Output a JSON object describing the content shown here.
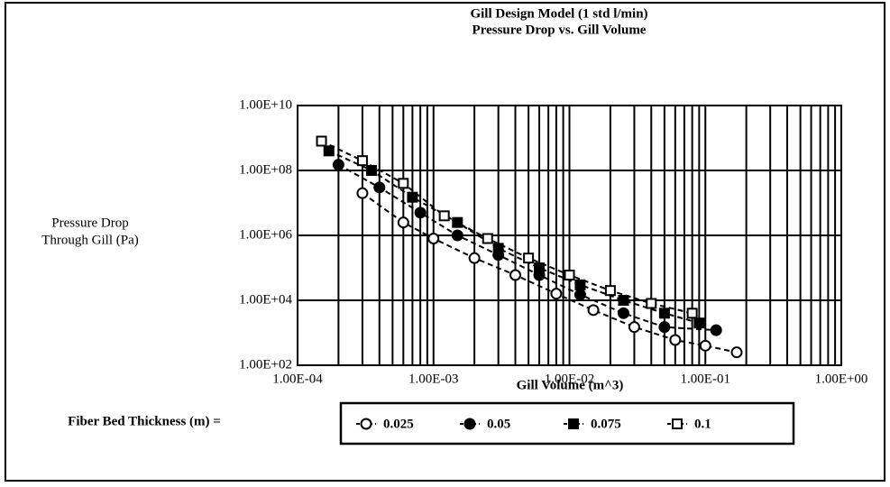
{
  "chart_data": {
    "type": "scatter",
    "title": "Gill Design Model (1 std l/min)",
    "subtitle": "Pressure Drop vs. Gill Volume",
    "y_label": [
      "Pressure Drop",
      "Through Gill (Pa)"
    ],
    "x_label": "Gill Volume (m^3)",
    "legend_title": "Fiber Bed Thickness (m) =",
    "xlog": true,
    "ylog": true,
    "grid": true,
    "xlim": [
      0.0001,
      1
    ],
    "ylim": [
      100,
      10000000000.0
    ],
    "xticks": [
      {
        "value": 0.0001,
        "label": "1.00E-04"
      },
      {
        "value": 0.001,
        "label": "1.00E-03"
      },
      {
        "value": 0.01,
        "label": "1.00E-02"
      },
      {
        "value": 0.1,
        "label": "1.00E-01"
      },
      {
        "value": 1,
        "label": "1.00E+00"
      }
    ],
    "yticks": [
      {
        "value": 100,
        "label": "1.00E+02"
      },
      {
        "value": 10000,
        "label": "1.00E+04"
      },
      {
        "value": 1000000,
        "label": "1.00E+06"
      },
      {
        "value": 100000000,
        "label": "1.00E+08"
      },
      {
        "value": 10000000000,
        "label": "1.00E+10"
      }
    ],
    "series": [
      {
        "name": "0.025",
        "color": "#000000",
        "marker": "circle-open",
        "x": [
          0.0003,
          0.0006,
          0.001,
          0.002,
          0.004,
          0.008,
          0.015,
          0.03,
          0.06,
          0.1,
          0.17
        ],
        "values": [
          20000000.0,
          2500000.0,
          800000.0,
          200000.0,
          60000.0,
          16000.0,
          5000,
          1500,
          600,
          400,
          250
        ]
      },
      {
        "name": "0.05",
        "color": "#000000",
        "marker": "circle",
        "x": [
          0.0002,
          0.0004,
          0.0008,
          0.0015,
          0.003,
          0.006,
          0.012,
          0.025,
          0.05,
          0.12
        ],
        "values": [
          150000000.0,
          30000000.0,
          5000000.0,
          1000000.0,
          250000.0,
          60000.0,
          15000.0,
          4000,
          1500,
          1200
        ]
      },
      {
        "name": "0.075",
        "color": "#000000",
        "marker": "square",
        "x": [
          0.00017,
          0.00035,
          0.0007,
          0.0015,
          0.003,
          0.006,
          0.012,
          0.025,
          0.05,
          0.09
        ],
        "values": [
          400000000.0,
          100000000.0,
          15000000.0,
          2500000.0,
          400000.0,
          100000.0,
          30000.0,
          10000.0,
          4000,
          2000
        ]
      },
      {
        "name": "0.1",
        "color": "#000000",
        "marker": "square-open",
        "x": [
          0.00015,
          0.0003,
          0.0006,
          0.0012,
          0.0025,
          0.005,
          0.01,
          0.02,
          0.04,
          0.08
        ],
        "values": [
          800000000.0,
          200000000.0,
          40000000.0,
          4000000.0,
          800000.0,
          200000.0,
          60000.0,
          20000.0,
          8000,
          4000
        ]
      }
    ]
  }
}
